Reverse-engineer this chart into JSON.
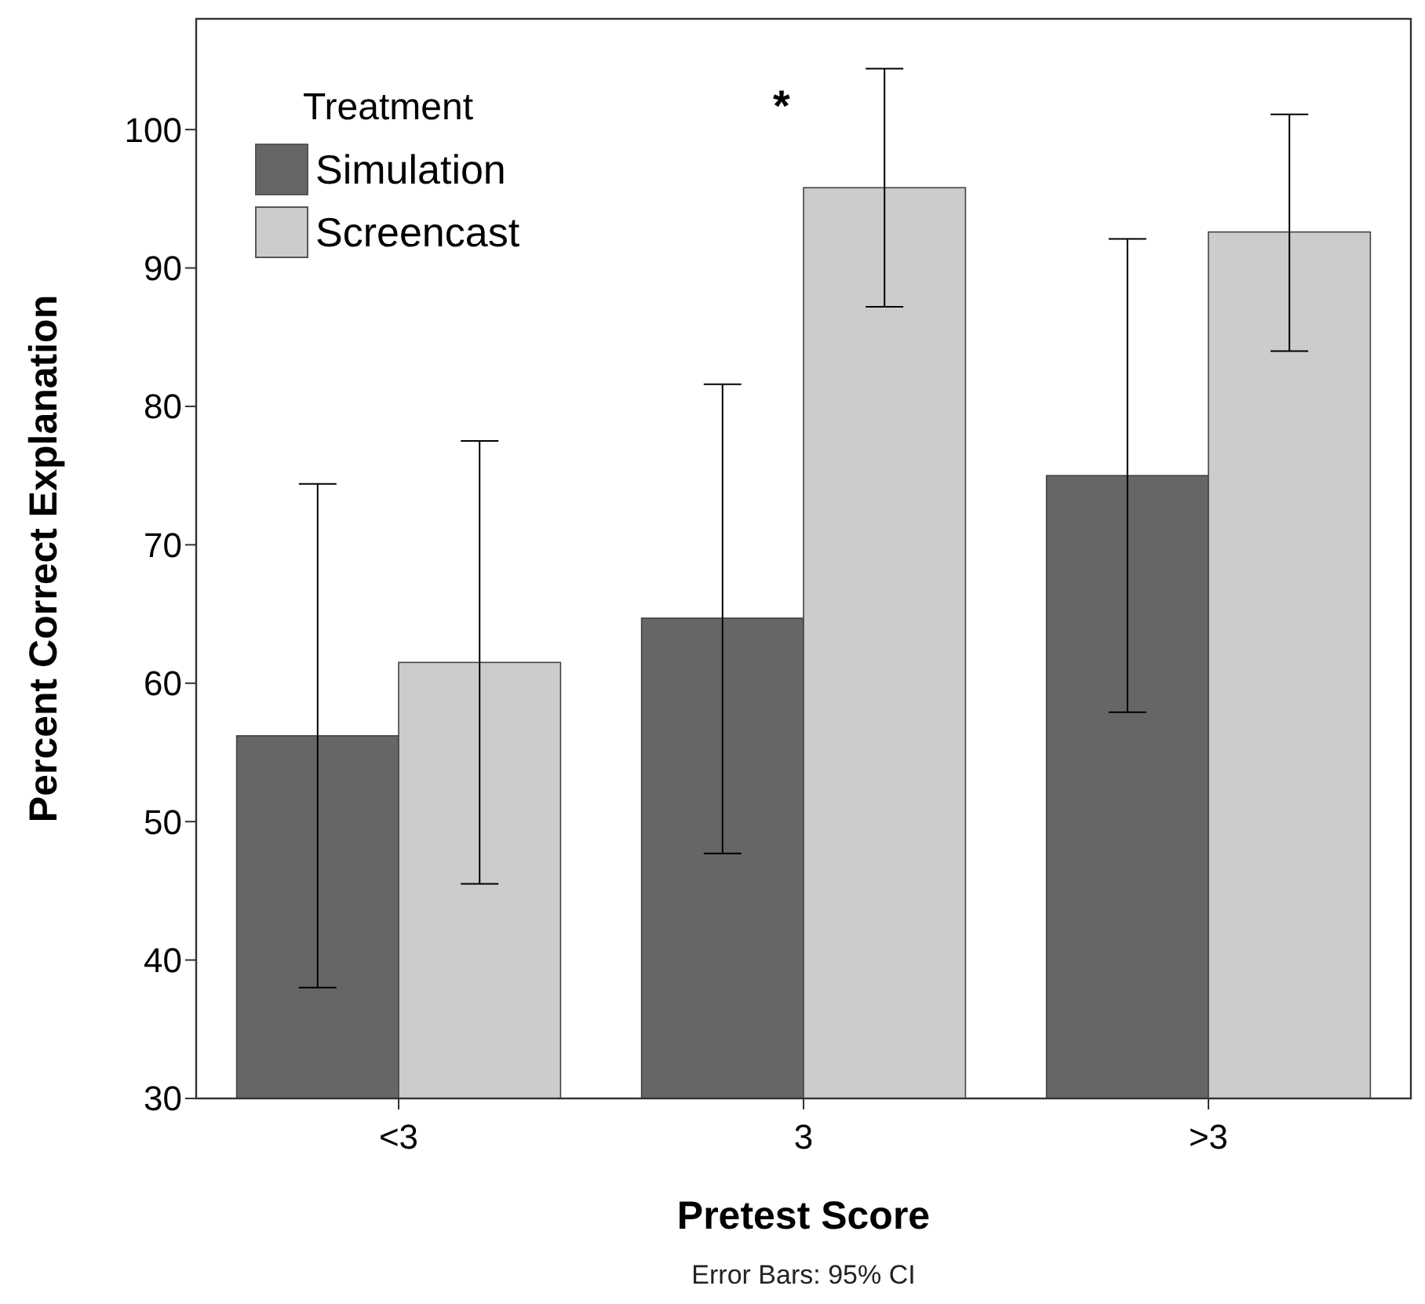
{
  "chart_data": {
    "type": "bar",
    "xlabel": "Pretest Score",
    "ylabel": "Percent Correct Explanation",
    "legend_title": "Treatment",
    "categories": [
      "<3",
      "3",
      ">3"
    ],
    "series": [
      {
        "name": "Simulation",
        "color": "#666666",
        "values": [
          56.2,
          64.7,
          75.0
        ],
        "errors": [
          [
            38.0,
            74.4
          ],
          [
            47.7,
            81.6
          ],
          [
            57.9,
            92.1
          ]
        ]
      },
      {
        "name": "Screencast",
        "color": "#cccccc",
        "values": [
          61.5,
          95.8,
          92.6
        ],
        "errors": [
          [
            45.5,
            77.5
          ],
          [
            87.2,
            104.4
          ],
          [
            84.0,
            101.1
          ]
        ]
      }
    ],
    "ylim": [
      30,
      108
    ],
    "yticks": [
      30,
      40,
      50,
      60,
      70,
      80,
      90,
      100
    ],
    "grid": false,
    "legend": "top left",
    "annotations": [
      "*",
      "Error Bars: 95% CI"
    ]
  }
}
